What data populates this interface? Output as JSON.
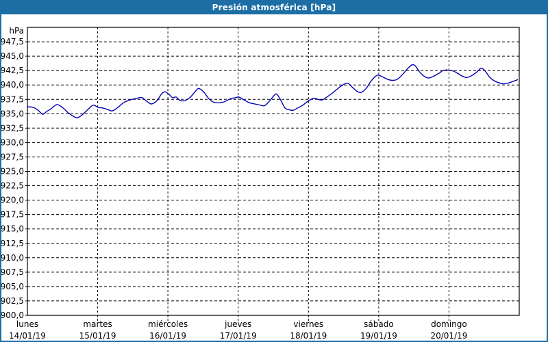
{
  "window": {
    "title": "Presión atmosférica [hPa]"
  },
  "colors": {
    "frame_blue": "#1c6ea4",
    "line_blue": "#0000b4",
    "grid_black": "#000000",
    "plot_background": "#ffffff",
    "title_text": "#ffffff"
  },
  "chart_data": {
    "type": "line",
    "title": "Presión atmosférica [hPa]",
    "ylabel": "hPa",
    "ylim": [
      900,
      950
    ],
    "ytick_step": 2.5,
    "ytick_values": [
      947.5,
      945.0,
      942.5,
      940.0,
      937.5,
      935.0,
      932.5,
      930.0,
      927.5,
      925.0,
      922.5,
      920.0,
      917.5,
      915.0,
      912.5,
      910.0,
      907.5,
      905.0,
      902.5,
      900.0
    ],
    "ytick_labels": [
      "947,5",
      "945,0",
      "942,5",
      "940,0",
      "937,5",
      "935,0",
      "932,5",
      "930,0",
      "927,5",
      "925,0",
      "922,5",
      "920,0",
      "917,5",
      "915,0",
      "912,5",
      "910,0",
      "907,5",
      "905,0",
      "902,5",
      "900,0"
    ],
    "grid": "dashed",
    "legend_position": "none",
    "x_hours_total": 168,
    "x_days": [
      {
        "name": "lunes",
        "date": "14/01/19"
      },
      {
        "name": "martes",
        "date": "15/01/19"
      },
      {
        "name": "miércoles",
        "date": "16/01/19"
      },
      {
        "name": "jueves",
        "date": "17/01/19"
      },
      {
        "name": "viernes",
        "date": "18/01/19"
      },
      {
        "name": "sábado",
        "date": "19/01/19"
      },
      {
        "name": "domingo",
        "date": "20/01/19"
      }
    ],
    "series": [
      {
        "name": "presión atmosférica",
        "unit": "hPa",
        "color": "#0000b4",
        "points": [
          [
            0,
            936.2
          ],
          [
            2,
            936.1
          ],
          [
            3.7,
            935.6
          ],
          [
            5.2,
            934.9
          ],
          [
            6.6,
            935.4
          ],
          [
            8.2,
            935.9
          ],
          [
            10.1,
            936.6
          ],
          [
            12.2,
            936.0
          ],
          [
            14.1,
            935.1
          ],
          [
            15.9,
            934.5
          ],
          [
            17.1,
            934.3
          ],
          [
            18.7,
            934.8
          ],
          [
            20.6,
            935.7
          ],
          [
            22.5,
            936.5
          ],
          [
            24.1,
            936.1
          ],
          [
            25.8,
            936.0
          ],
          [
            27.6,
            935.7
          ],
          [
            29,
            935.5
          ],
          [
            30.9,
            936.1
          ],
          [
            32.8,
            936.9
          ],
          [
            35.1,
            937.4
          ],
          [
            37.5,
            937.7
          ],
          [
            39.1,
            937.8
          ],
          [
            40.7,
            937.2
          ],
          [
            42.4,
            936.7
          ],
          [
            44.3,
            937.3
          ],
          [
            45.9,
            938.5
          ],
          [
            47.1,
            938.8
          ],
          [
            48.5,
            938.3
          ],
          [
            49.6,
            937.8
          ],
          [
            50.8,
            937.9
          ],
          [
            52.2,
            937.3
          ],
          [
            53.9,
            937.3
          ],
          [
            55.7,
            937.9
          ],
          [
            57.4,
            938.9
          ],
          [
            58.5,
            939.4
          ],
          [
            60.2,
            938.8
          ],
          [
            62,
            937.6
          ],
          [
            63.7,
            937.0
          ],
          [
            65.6,
            936.9
          ],
          [
            67.4,
            937.1
          ],
          [
            69.3,
            937.6
          ],
          [
            71.2,
            937.8
          ],
          [
            72.3,
            937.9
          ],
          [
            74,
            937.4
          ],
          [
            75.9,
            936.9
          ],
          [
            77.7,
            936.7
          ],
          [
            79.6,
            936.5
          ],
          [
            81,
            936.4
          ],
          [
            82.7,
            937.2
          ],
          [
            84.3,
            938.2
          ],
          [
            85.2,
            938.4
          ],
          [
            86.6,
            937.3
          ],
          [
            88,
            936.0
          ],
          [
            89.4,
            935.7
          ],
          [
            90.8,
            935.6
          ],
          [
            92.3,
            936.0
          ],
          [
            94.1,
            936.5
          ],
          [
            96.2,
            937.3
          ],
          [
            97.9,
            937.7
          ],
          [
            99.3,
            937.5
          ],
          [
            100.7,
            937.4
          ],
          [
            102.3,
            937.9
          ],
          [
            104.2,
            938.6
          ],
          [
            106.1,
            939.4
          ],
          [
            107.7,
            940.0
          ],
          [
            109.4,
            940.3
          ],
          [
            111,
            939.6
          ],
          [
            112.6,
            938.9
          ],
          [
            114,
            938.7
          ],
          [
            115.7,
            939.4
          ],
          [
            117.3,
            940.6
          ],
          [
            118.9,
            941.5
          ],
          [
            119.9,
            941.7
          ],
          [
            121.3,
            941.4
          ],
          [
            122.9,
            941.0
          ],
          [
            124.6,
            940.8
          ],
          [
            126.4,
            941.0
          ],
          [
            128.3,
            941.9
          ],
          [
            130,
            942.9
          ],
          [
            131.4,
            943.5
          ],
          [
            132.5,
            943.3
          ],
          [
            133.9,
            942.3
          ],
          [
            135.3,
            941.6
          ],
          [
            137,
            941.2
          ],
          [
            138.6,
            941.5
          ],
          [
            140.5,
            942.0
          ],
          [
            141.9,
            942.5
          ],
          [
            143.3,
            942.6
          ],
          [
            144.5,
            942.5
          ],
          [
            145.6,
            942.4
          ],
          [
            147,
            942.0
          ],
          [
            148.7,
            941.5
          ],
          [
            150.1,
            941.3
          ],
          [
            151.7,
            941.6
          ],
          [
            153.4,
            942.2
          ],
          [
            155,
            942.9
          ],
          [
            156.4,
            942.4
          ],
          [
            157.8,
            941.4
          ],
          [
            159.2,
            940.8
          ],
          [
            160.9,
            940.4
          ],
          [
            162.5,
            940.2
          ],
          [
            164.1,
            940.3
          ],
          [
            165.8,
            940.6
          ],
          [
            167.4,
            940.9
          ]
        ]
      }
    ]
  }
}
